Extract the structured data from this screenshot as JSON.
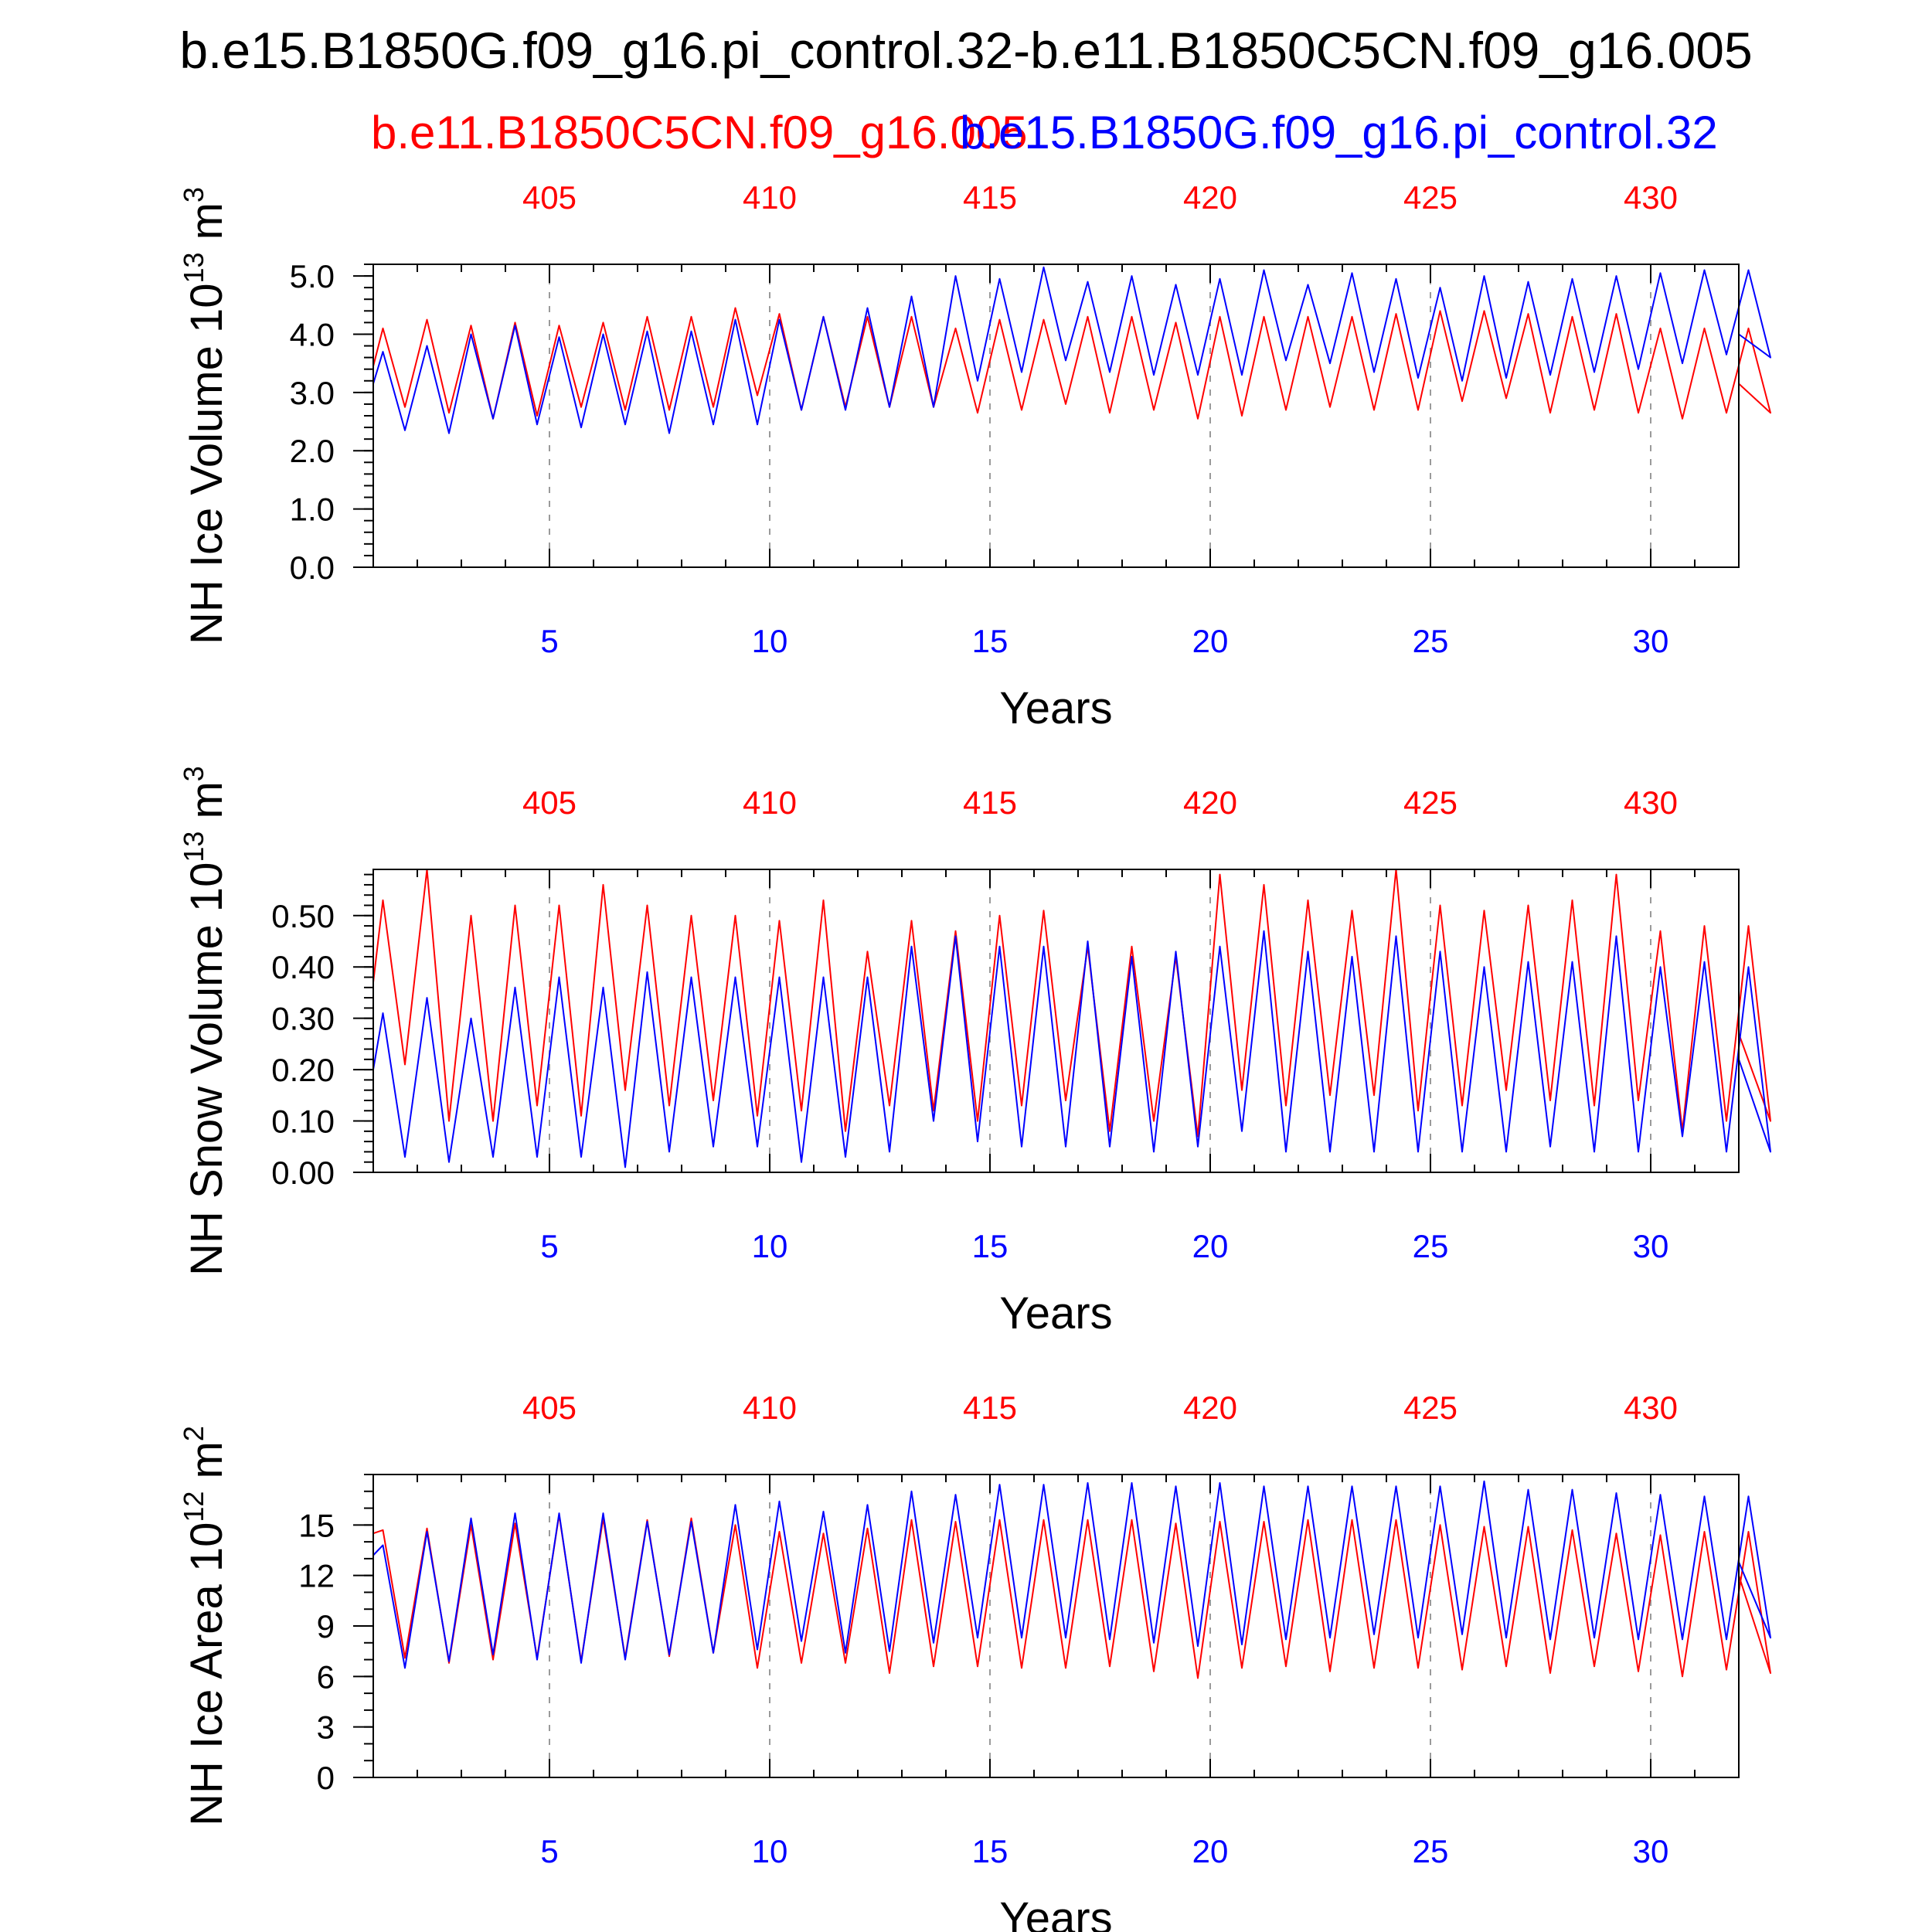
{
  "title": "b.e15.B1850G.f09_g16.pi_control.32-b.e11.B1850C5CN.f09_g16.005",
  "legend": {
    "red_label": "b.e11.B1850C5CN.f09_g16.005",
    "blue_label": "b.e15.B1850G.f09_g16.pi_control.32"
  },
  "colors": {
    "red": "#ff0000",
    "blue": "#0000ff",
    "axis": "#000000",
    "grid": "#9a9a9a"
  },
  "chart_data": [
    {
      "type": "line",
      "ylabel": "NH Ice Volume 10",
      "ylabel_exp": "13",
      "ylabel_unit": " m",
      "ylabel_unit_exp": "3",
      "xlabel": "Years",
      "xlim": [
        1,
        32
      ],
      "ylim": [
        0,
        5.2
      ],
      "yticks": [
        0,
        1,
        2,
        3,
        4,
        5
      ],
      "ytick_labels": [
        "0.0",
        "1.0",
        "2.0",
        "3.0",
        "4.0",
        "5.0"
      ],
      "yminor": 0.2,
      "bottom_ticks": [
        5,
        10,
        15,
        20,
        25,
        30
      ],
      "top_ticks": [
        5,
        10,
        15,
        20,
        25,
        30
      ],
      "top_tick_labels": [
        "405",
        "410",
        "415",
        "420",
        "425",
        "430"
      ],
      "series": [
        {
          "name": "b.e11.B1850C5CN.f09_g16.005",
          "color": "red",
          "maxima": [
            4.1,
            4.25,
            4.15,
            4.2,
            4.15,
            4.2,
            4.3,
            4.3,
            4.45,
            4.35,
            4.3,
            4.3,
            4.3,
            4.1,
            4.25,
            4.25,
            4.3,
            4.3,
            4.2,
            4.3,
            4.3,
            4.3,
            4.3,
            4.35,
            4.4,
            4.4,
            4.35,
            4.3,
            4.35,
            4.1,
            4.1,
            4.1
          ],
          "minima": [
            2.75,
            2.65,
            2.55,
            2.6,
            2.75,
            2.7,
            2.7,
            2.75,
            2.95,
            2.7,
            2.75,
            2.75,
            2.75,
            2.65,
            2.7,
            2.8,
            2.65,
            2.7,
            2.55,
            2.6,
            2.7,
            2.75,
            2.7,
            2.7,
            2.85,
            2.9,
            2.65,
            2.7,
            2.65,
            2.55,
            2.65,
            2.65
          ],
          "start": 3.45,
          "end": 3.15
        },
        {
          "name": "b.e15.B1850G.f09_g16.pi_control.32",
          "color": "blue",
          "maxima": [
            3.7,
            3.8,
            4.0,
            4.15,
            3.95,
            4.0,
            4.05,
            4.05,
            4.25,
            4.25,
            4.3,
            4.45,
            4.65,
            5.0,
            4.95,
            5.15,
            4.9,
            5.0,
            4.85,
            4.95,
            5.1,
            4.85,
            5.05,
            4.95,
            4.8,
            5.0,
            4.9,
            4.95,
            5.0,
            5.05,
            5.1,
            5.1
          ],
          "minima": [
            2.35,
            2.3,
            2.55,
            2.45,
            2.4,
            2.45,
            2.3,
            2.45,
            2.45,
            2.7,
            2.7,
            2.75,
            2.75,
            3.2,
            3.35,
            3.55,
            3.35,
            3.3,
            3.3,
            3.3,
            3.55,
            3.5,
            3.35,
            3.25,
            3.2,
            3.25,
            3.3,
            3.35,
            3.4,
            3.5,
            3.65,
            3.6
          ],
          "start": 3.15,
          "end": 4.0
        }
      ]
    },
    {
      "type": "line",
      "ylabel": "NH Snow Volume 10",
      "ylabel_exp": "13",
      "ylabel_unit": " m",
      "ylabel_unit_exp": "3",
      "xlabel": "Years",
      "xlim": [
        1,
        32
      ],
      "ylim": [
        0,
        0.59
      ],
      "yticks": [
        0,
        0.1,
        0.2,
        0.3,
        0.4,
        0.5
      ],
      "ytick_labels": [
        "0.00",
        "0.10",
        "0.20",
        "0.30",
        "0.40",
        "0.50"
      ],
      "yminor": 0.02,
      "bottom_ticks": [
        5,
        10,
        15,
        20,
        25,
        30
      ],
      "top_ticks": [
        5,
        10,
        15,
        20,
        25,
        30
      ],
      "top_tick_labels": [
        "405",
        "410",
        "415",
        "420",
        "425",
        "430"
      ],
      "series": [
        {
          "name": "b.e11.B1850C5CN.f09_g16.005",
          "color": "red",
          "maxima": [
            0.53,
            0.59,
            0.5,
            0.52,
            0.52,
            0.56,
            0.52,
            0.5,
            0.5,
            0.49,
            0.53,
            0.43,
            0.49,
            0.47,
            0.5,
            0.51,
            0.44,
            0.44,
            0.42,
            0.58,
            0.56,
            0.53,
            0.51,
            0.59,
            0.52,
            0.51,
            0.52,
            0.53,
            0.58,
            0.47,
            0.48,
            0.48
          ],
          "minima": [
            0.21,
            0.1,
            0.1,
            0.13,
            0.11,
            0.16,
            0.13,
            0.14,
            0.11,
            0.12,
            0.08,
            0.13,
            0.12,
            0.1,
            0.13,
            0.14,
            0.08,
            0.1,
            0.07,
            0.16,
            0.13,
            0.15,
            0.15,
            0.12,
            0.13,
            0.16,
            0.14,
            0.13,
            0.14,
            0.08,
            0.1,
            0.1
          ],
          "start": 0.37,
          "end": 0.27
        },
        {
          "name": "b.e15.B1850G.f09_g16.pi_control.32",
          "color": "blue",
          "maxima": [
            0.31,
            0.34,
            0.3,
            0.36,
            0.38,
            0.36,
            0.39,
            0.38,
            0.38,
            0.38,
            0.38,
            0.38,
            0.44,
            0.46,
            0.44,
            0.44,
            0.45,
            0.42,
            0.43,
            0.44,
            0.47,
            0.43,
            0.42,
            0.46,
            0.43,
            0.4,
            0.41,
            0.41,
            0.46,
            0.4,
            0.41,
            0.4
          ],
          "minima": [
            0.03,
            0.02,
            0.03,
            0.03,
            0.03,
            0.01,
            0.04,
            0.05,
            0.05,
            0.02,
            0.03,
            0.04,
            0.1,
            0.06,
            0.05,
            0.05,
            0.05,
            0.04,
            0.05,
            0.08,
            0.04,
            0.04,
            0.04,
            0.04,
            0.04,
            0.04,
            0.05,
            0.04,
            0.04,
            0.07,
            0.04,
            0.04
          ],
          "start": 0.2,
          "end": 0.22
        }
      ]
    },
    {
      "type": "line",
      "ylabel": "NH Ice Area 10",
      "ylabel_exp": "12",
      "ylabel_unit": " m",
      "ylabel_unit_exp": "2",
      "xlabel": "Years",
      "xlim": [
        1,
        32
      ],
      "ylim": [
        0,
        18
      ],
      "yticks": [
        0,
        3,
        6,
        9,
        12,
        15
      ],
      "ytick_labels": [
        "0",
        "3",
        "6",
        "9",
        "12",
        "15"
      ],
      "yminor": 1,
      "bottom_ticks": [
        5,
        10,
        15,
        20,
        25,
        30
      ],
      "top_ticks": [
        5,
        10,
        15,
        20,
        25,
        30
      ],
      "top_tick_labels": [
        "405",
        "410",
        "415",
        "420",
        "425",
        "430"
      ],
      "series": [
        {
          "name": "b.e11.B1850C5CN.f09_g16.005",
          "color": "red",
          "maxima": [
            14.7,
            14.8,
            15.0,
            15.1,
            15.6,
            15.4,
            15.3,
            15.4,
            15.0,
            14.6,
            14.5,
            14.8,
            15.3,
            15.2,
            15.3,
            15.3,
            15.3,
            15.3,
            15.1,
            15.2,
            15.2,
            15.3,
            15.3,
            15.3,
            15.0,
            14.9,
            14.9,
            14.7,
            14.5,
            14.4,
            14.6,
            14.6
          ],
          "minima": [
            7.1,
            6.8,
            7.0,
            7.1,
            6.9,
            7.1,
            7.2,
            7.4,
            6.5,
            6.8,
            6.8,
            6.2,
            6.6,
            6.6,
            6.5,
            6.5,
            6.6,
            6.3,
            5.9,
            6.5,
            6.6,
            6.3,
            6.5,
            6.5,
            6.4,
            6.6,
            6.2,
            6.6,
            6.3,
            6.0,
            6.4,
            6.2
          ],
          "start": 14.5,
          "end": 12.0
        },
        {
          "name": "b.e15.B1850G.f09_g16.pi_control.32",
          "color": "blue",
          "maxima": [
            13.8,
            14.6,
            15.4,
            15.7,
            15.7,
            15.7,
            15.2,
            15.2,
            16.2,
            16.4,
            15.8,
            16.2,
            17.0,
            16.8,
            17.4,
            17.4,
            17.5,
            17.5,
            17.3,
            17.5,
            17.3,
            17.3,
            17.3,
            17.3,
            17.3,
            17.6,
            17.1,
            17.1,
            16.9,
            16.8,
            16.7,
            16.7
          ],
          "minima": [
            6.5,
            6.9,
            7.3,
            7.0,
            6.8,
            7.0,
            7.3,
            7.4,
            7.6,
            8.1,
            7.4,
            7.5,
            8.0,
            8.3,
            8.3,
            8.3,
            8.2,
            8.0,
            7.8,
            7.9,
            8.2,
            8.3,
            8.5,
            8.3,
            8.5,
            8.3,
            8.2,
            8.3,
            8.2,
            8.2,
            8.2,
            8.3
          ],
          "start": 13.2,
          "end": 12.8
        }
      ]
    }
  ]
}
